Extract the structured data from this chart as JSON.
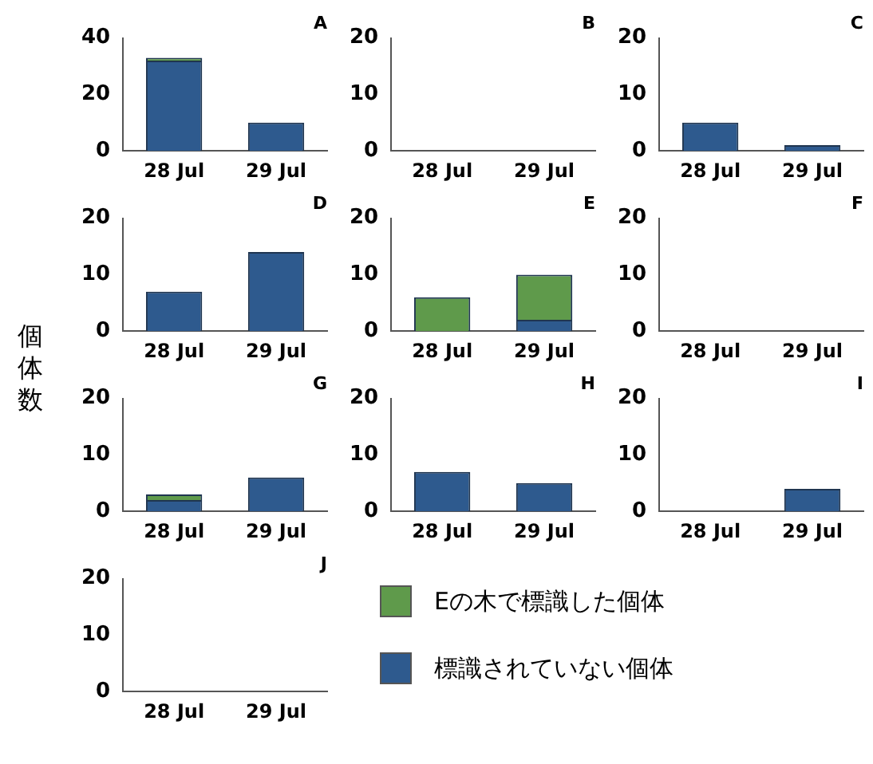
{
  "chart_data": [
    {
      "type": "bar",
      "title": "A",
      "categories": [
        "28 Jul",
        "29 Jul"
      ],
      "stacked": true,
      "ylim": [
        0,
        40
      ],
      "yticks": [
        0,
        20,
        40
      ],
      "series": [
        {
          "color": "#2e5a8e",
          "values": [
            32,
            10
          ]
        },
        {
          "color": "#5f9a4b",
          "values": [
            1,
            0
          ]
        }
      ]
    },
    {
      "type": "bar",
      "title": "B",
      "categories": [
        "28 Jul",
        "29 Jul"
      ],
      "stacked": true,
      "ylim": [
        0,
        20
      ],
      "yticks": [
        0,
        10,
        20
      ],
      "series": [
        {
          "color": "#2e5a8e",
          "values": [
            0,
            0
          ]
        },
        {
          "color": "#5f9a4b",
          "values": [
            0,
            0
          ]
        }
      ]
    },
    {
      "type": "bar",
      "title": "C",
      "categories": [
        "28 Jul",
        "29 Jul"
      ],
      "stacked": true,
      "ylim": [
        0,
        20
      ],
      "yticks": [
        0,
        10,
        20
      ],
      "series": [
        {
          "color": "#2e5a8e",
          "values": [
            5,
            1
          ]
        },
        {
          "color": "#5f9a4b",
          "values": [
            0,
            0
          ]
        }
      ]
    },
    {
      "type": "bar",
      "title": "D",
      "ylabel": "個体数",
      "categories": [
        "28 Jul",
        "29 Jul"
      ],
      "stacked": true,
      "ylim": [
        0,
        20
      ],
      "yticks": [
        0,
        10,
        20
      ],
      "series": [
        {
          "color": "#2e5a8e",
          "values": [
            7,
            14
          ]
        },
        {
          "color": "#5f9a4b",
          "values": [
            0,
            0
          ]
        }
      ]
    },
    {
      "type": "bar",
      "title": "E",
      "categories": [
        "28 Jul",
        "29 Jul"
      ],
      "stacked": true,
      "ylim": [
        0,
        20
      ],
      "yticks": [
        0,
        10,
        20
      ],
      "series": [
        {
          "color": "#2e5a8e",
          "values": [
            0,
            2
          ]
        },
        {
          "color": "#5f9a4b",
          "values": [
            6,
            8
          ]
        }
      ]
    },
    {
      "type": "bar",
      "title": "F",
      "categories": [
        "28 Jul",
        "29 Jul"
      ],
      "stacked": true,
      "ylim": [
        0,
        20
      ],
      "yticks": [
        0,
        10,
        20
      ],
      "series": [
        {
          "color": "#2e5a8e",
          "values": [
            0,
            0
          ]
        },
        {
          "color": "#5f9a4b",
          "values": [
            0,
            0
          ]
        }
      ]
    },
    {
      "type": "bar",
      "title": "G",
      "categories": [
        "28 Jul",
        "29 Jul"
      ],
      "stacked": true,
      "ylim": [
        0,
        20
      ],
      "yticks": [
        0,
        10,
        20
      ],
      "series": [
        {
          "color": "#2e5a8e",
          "values": [
            2,
            6
          ]
        },
        {
          "color": "#5f9a4b",
          "values": [
            1,
            0
          ]
        }
      ]
    },
    {
      "type": "bar",
      "title": "H",
      "categories": [
        "28 Jul",
        "29 Jul"
      ],
      "stacked": true,
      "ylim": [
        0,
        20
      ],
      "yticks": [
        0,
        10,
        20
      ],
      "series": [
        {
          "color": "#2e5a8e",
          "values": [
            7,
            5
          ]
        },
        {
          "color": "#5f9a4b",
          "values": [
            0,
            0
          ]
        }
      ]
    },
    {
      "type": "bar",
      "title": "I",
      "categories": [
        "28 Jul",
        "29 Jul"
      ],
      "stacked": true,
      "ylim": [
        0,
        20
      ],
      "yticks": [
        0,
        10,
        20
      ],
      "series": [
        {
          "color": "#2e5a8e",
          "values": [
            0,
            4
          ]
        },
        {
          "color": "#5f9a4b",
          "values": [
            0,
            0
          ]
        }
      ]
    },
    {
      "type": "bar",
      "title": "J",
      "categories": [
        "28 Jul",
        "29 Jul"
      ],
      "stacked": true,
      "ylim": [
        0,
        20
      ],
      "yticks": [
        0,
        10,
        20
      ],
      "legend": "right",
      "series": [
        {
          "name": "標識されていない個体",
          "color": "#2e5a8e",
          "values": [
            0,
            0
          ]
        },
        {
          "name": "Eの木で標識した個体",
          "color": "#5f9a4b",
          "values": [
            0,
            0
          ]
        }
      ]
    }
  ]
}
